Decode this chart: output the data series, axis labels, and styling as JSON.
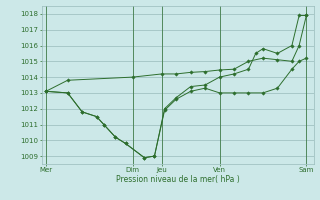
{
  "xlabel": "Pression niveau de la mer( hPa )",
  "bg_color": "#cce8e8",
  "line_color": "#2d6e2d",
  "grid_color": "#99bbbb",
  "ylim": [
    1008.5,
    1018.5
  ],
  "yticks": [
    1009,
    1010,
    1011,
    1012,
    1013,
    1014,
    1015,
    1016,
    1017,
    1018
  ],
  "xtick_labels": [
    "Mer",
    "Dim",
    "Jeu",
    "Ven",
    "Sam"
  ],
  "xtick_positions": [
    0,
    6,
    8,
    12,
    18
  ],
  "line1_x": [
    0,
    1.5,
    6,
    8,
    9,
    10,
    11,
    12,
    13,
    14,
    15,
    16,
    17,
    17.5,
    18
  ],
  "line1_y": [
    1013.1,
    1013.8,
    1014.0,
    1014.2,
    1014.2,
    1014.3,
    1014.35,
    1014.45,
    1014.5,
    1015.0,
    1015.2,
    1015.1,
    1015.0,
    1016.0,
    1017.9
  ],
  "line2_x": [
    0,
    1.5,
    2.5,
    3.5,
    4.0,
    4.8,
    5.5,
    6.8,
    7.5,
    8.2,
    9,
    10,
    11,
    12,
    13,
    14,
    15,
    16,
    17,
    17.5,
    18
  ],
  "line2_y": [
    1013.1,
    1013.0,
    1011.8,
    1011.5,
    1011.0,
    1010.2,
    1009.8,
    1008.9,
    1009.0,
    1011.9,
    1012.6,
    1013.1,
    1013.3,
    1013.0,
    1013.0,
    1013.0,
    1013.0,
    1013.3,
    1014.5,
    1015.0,
    1015.2
  ],
  "line3_x": [
    0,
    1.5,
    2.5,
    3.5,
    4.0,
    4.8,
    5.5,
    6.8,
    7.5,
    8.2,
    9,
    10,
    11,
    12,
    13,
    14,
    14.5,
    15,
    16,
    17,
    17.5,
    18
  ],
  "line3_y": [
    1013.1,
    1013.0,
    1011.8,
    1011.5,
    1011.0,
    1010.2,
    1009.8,
    1008.9,
    1009.0,
    1012.0,
    1012.7,
    1013.4,
    1013.5,
    1014.0,
    1014.2,
    1014.5,
    1015.5,
    1015.8,
    1015.5,
    1016.0,
    1017.9,
    1017.9
  ],
  "xlim": [
    -0.3,
    18.5
  ],
  "figsize": [
    3.2,
    2.0
  ],
  "dpi": 100
}
